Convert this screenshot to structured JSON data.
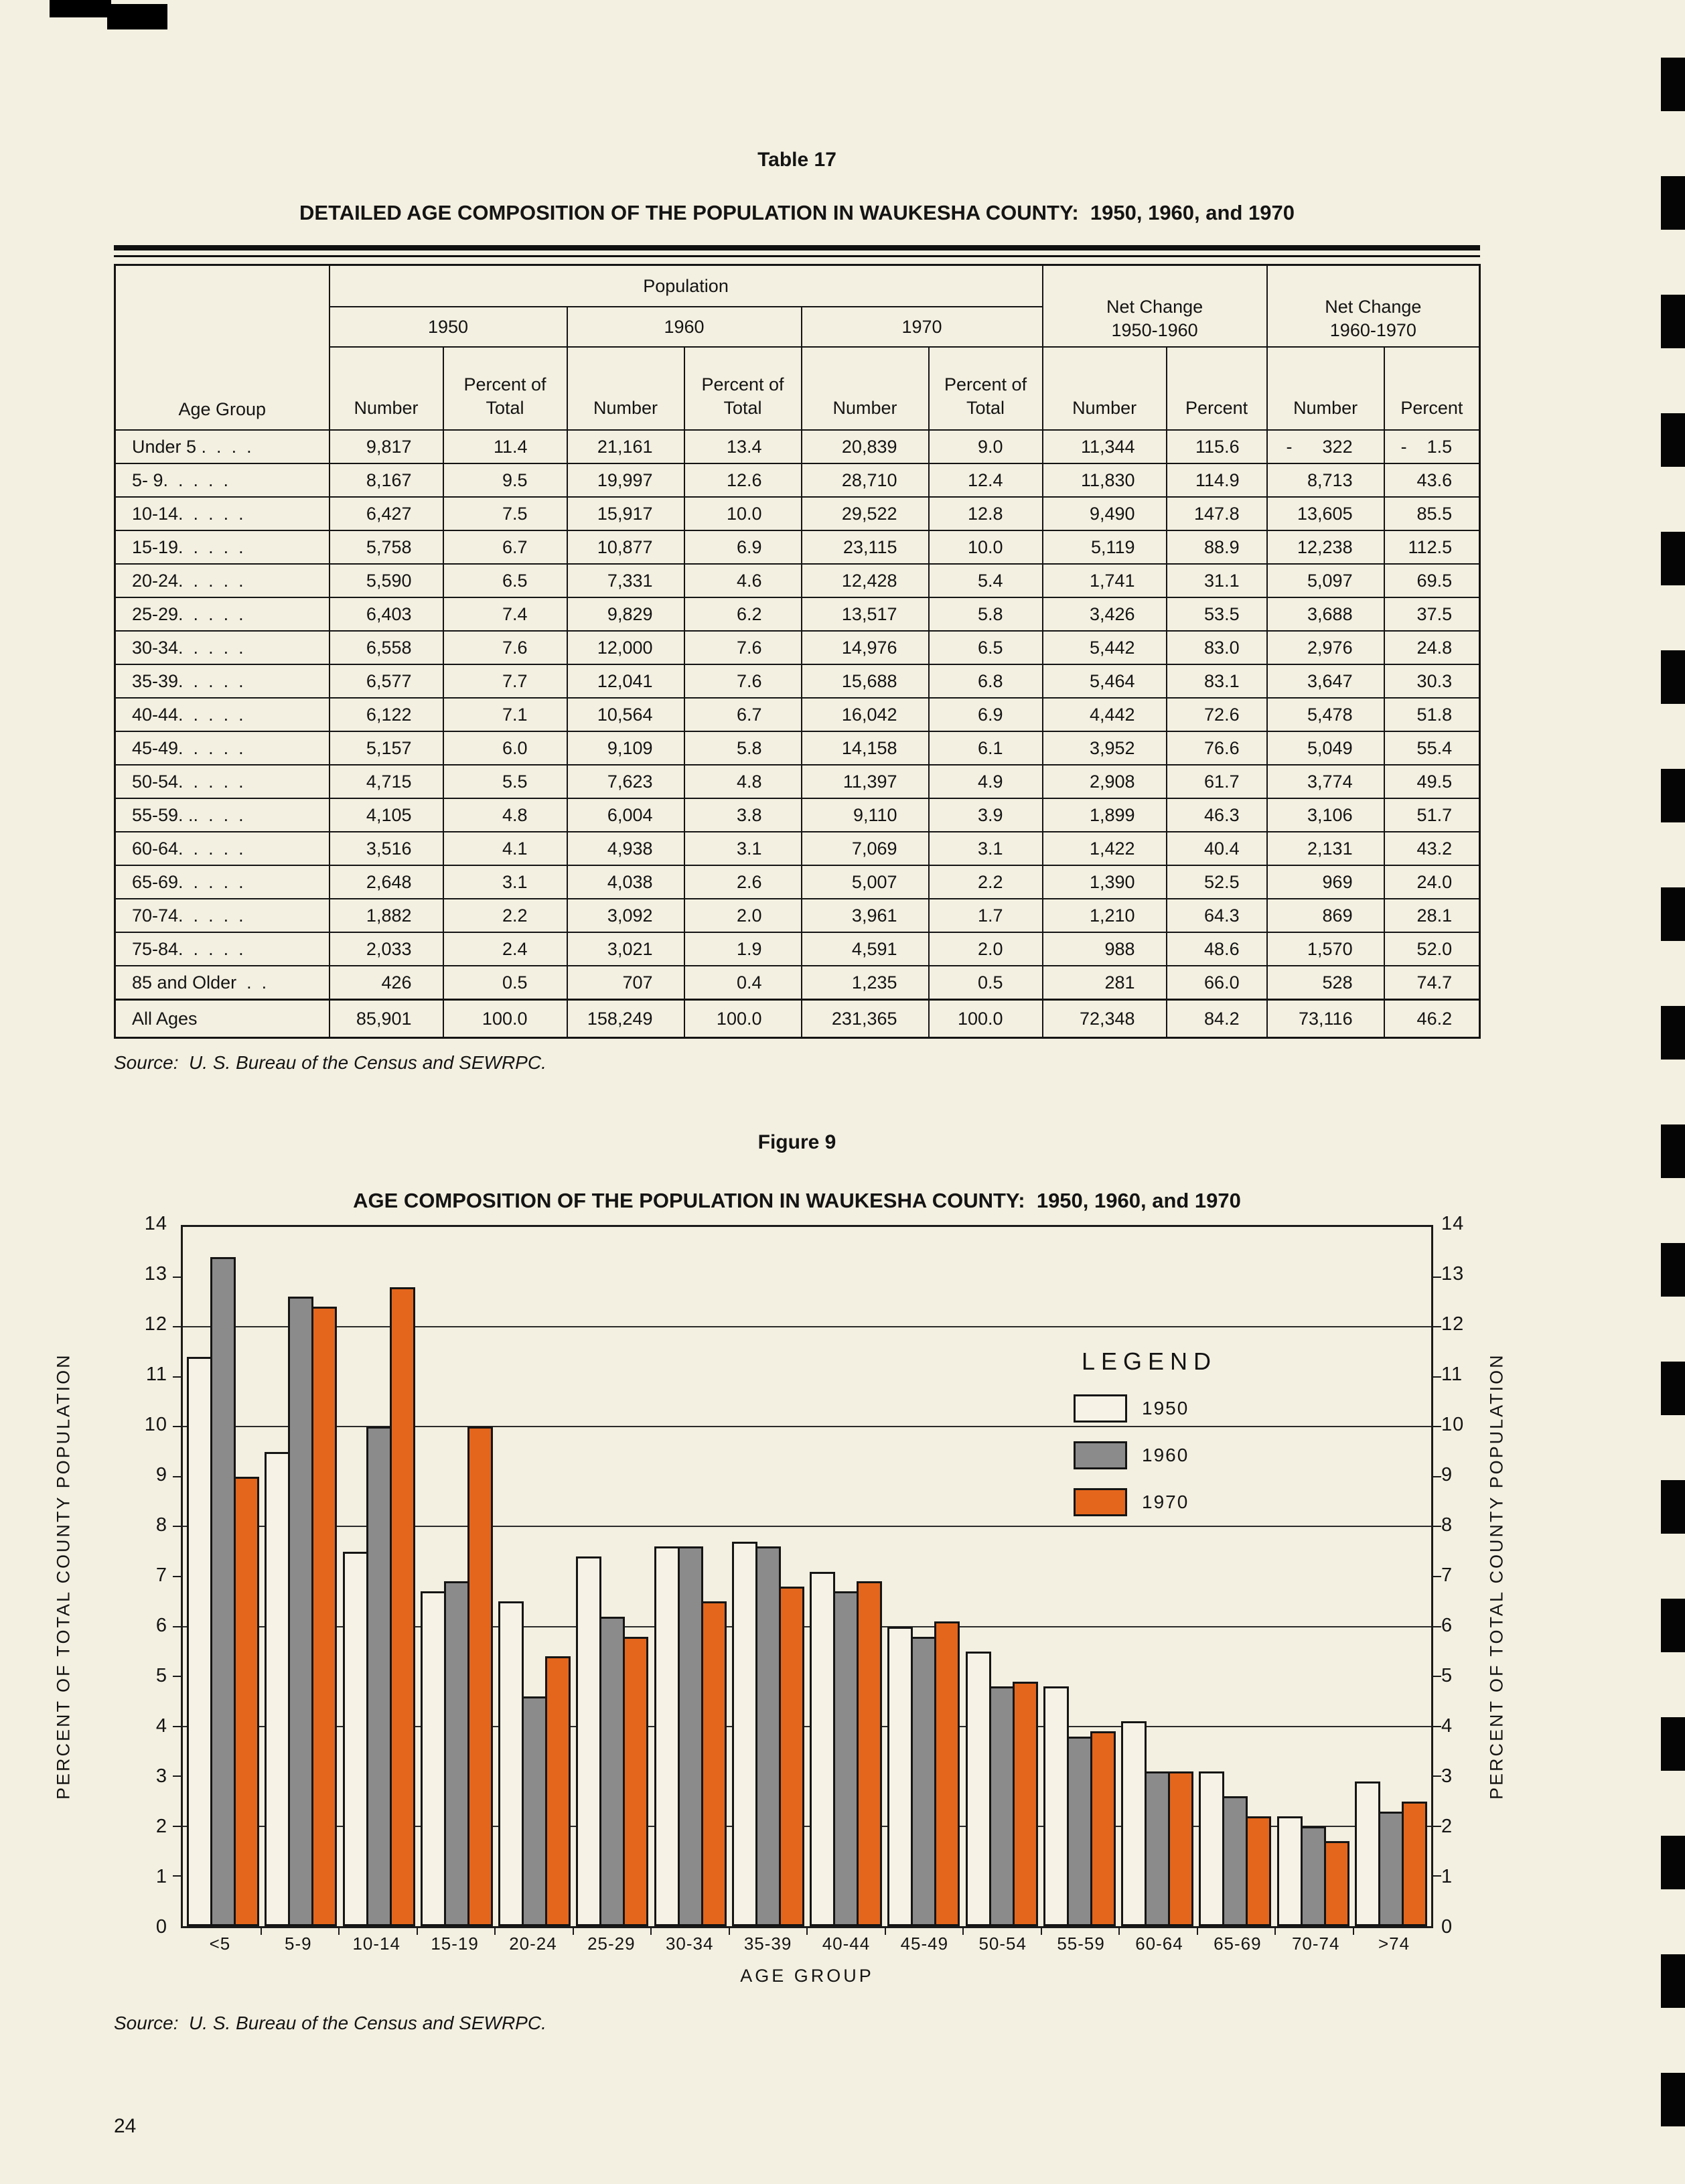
{
  "page": {
    "number": "24"
  },
  "table": {
    "label": "Table 17",
    "title": "DETAILED AGE COMPOSITION OF THE POPULATION IN WAUKESHA COUNTY:  1950, 1960, and 1970",
    "header": {
      "population": "Population",
      "age_group": "Age Group",
      "year_groups": [
        "1950",
        "1960",
        "1970"
      ],
      "number": "Number",
      "percent_of_total": "Percent of Total",
      "percent": "Percent",
      "net_change": [
        {
          "line1": "Net Change",
          "line2": "1950-1960"
        },
        {
          "line1": "Net Change",
          "line2": "1960-1970"
        }
      ]
    },
    "rows": [
      [
        "Under 5 .  .  .  .",
        "9,817",
        "11.4",
        "21,161",
        "13.4",
        "20,839",
        "9.0",
        "11,344",
        "115.6",
        "-      322",
        "-    1.5"
      ],
      [
        "5- 9.  .  .  .  .",
        "8,167",
        "9.5",
        "19,997",
        "12.6",
        "28,710",
        "12.4",
        "11,830",
        "114.9",
        "8,713",
        "43.6"
      ],
      [
        "10-14.  .  .  .  .",
        "6,427",
        "7.5",
        "15,917",
        "10.0",
        "29,522",
        "12.8",
        "9,490",
        "147.8",
        "13,605",
        "85.5"
      ],
      [
        "15-19.  .  .  .  .",
        "5,758",
        "6.7",
        "10,877",
        "6.9",
        "23,115",
        "10.0",
        "5,119",
        "88.9",
        "12,238",
        "112.5"
      ],
      [
        "20-24.  .  .  .  .",
        "5,590",
        "6.5",
        "7,331",
        "4.6",
        "12,428",
        "5.4",
        "1,741",
        "31.1",
        "5,097",
        "69.5"
      ],
      [
        "25-29.  .  .  .  .",
        "6,403",
        "7.4",
        "9,829",
        "6.2",
        "13,517",
        "5.8",
        "3,426",
        "53.5",
        "3,688",
        "37.5"
      ],
      [
        "30-34.  .  .  .  .",
        "6,558",
        "7.6",
        "12,000",
        "7.6",
        "14,976",
        "6.5",
        "5,442",
        "83.0",
        "2,976",
        "24.8"
      ],
      [
        "35-39.  .  .  .  .",
        "6,577",
        "7.7",
        "12,041",
        "7.6",
        "15,688",
        "6.8",
        "5,464",
        "83.1",
        "3,647",
        "30.3"
      ],
      [
        "40-44.  .  .  .  .",
        "6,122",
        "7.1",
        "10,564",
        "6.7",
        "16,042",
        "6.9",
        "4,442",
        "72.6",
        "5,478",
        "51.8"
      ],
      [
        "45-49.  .  .  .  .",
        "5,157",
        "6.0",
        "9,109",
        "5.8",
        "14,158",
        "6.1",
        "3,952",
        "76.6",
        "5,049",
        "55.4"
      ],
      [
        "50-54.  .  .  .  .",
        "4,715",
        "5.5",
        "7,623",
        "4.8",
        "11,397",
        "4.9",
        "2,908",
        "61.7",
        "3,774",
        "49.5"
      ],
      [
        "55-59. ..  .  .  .",
        "4,105",
        "4.8",
        "6,004",
        "3.8",
        "9,110",
        "3.9",
        "1,899",
        "46.3",
        "3,106",
        "51.7"
      ],
      [
        "60-64.  .  .  .  .",
        "3,516",
        "4.1",
        "4,938",
        "3.1",
        "7,069",
        "3.1",
        "1,422",
        "40.4",
        "2,131",
        "43.2"
      ],
      [
        "65-69.  .  .  .  .",
        "2,648",
        "3.1",
        "4,038",
        "2.6",
        "5,007",
        "2.2",
        "1,390",
        "52.5",
        "969",
        "24.0"
      ],
      [
        "70-74.  .  .  .  .",
        "1,882",
        "2.2",
        "3,092",
        "2.0",
        "3,961",
        "1.7",
        "1,210",
        "64.3",
        "869",
        "28.1"
      ],
      [
        "75-84.  .  .  .  .",
        "2,033",
        "2.4",
        "3,021",
        "1.9",
        "4,591",
        "2.0",
        "988",
        "48.6",
        "1,570",
        "52.0"
      ],
      [
        "85 and Older  .  .",
        "426",
        "0.5",
        "707",
        "0.4",
        "1,235",
        "0.5",
        "281",
        "66.0",
        "528",
        "74.7"
      ]
    ],
    "total_row": [
      "All Ages",
      "85,901",
      "100.0",
      "158,249",
      "100.0",
      "231,365",
      "100.0",
      "72,348",
      "84.2",
      "73,116",
      "46.2"
    ],
    "source": "Source:  U. S. Bureau of the Census and SEWRPC."
  },
  "figure": {
    "label": "Figure 9",
    "source": "Source:  U. S. Bureau of the Census and SEWRPC."
  },
  "chart_data": {
    "type": "bar",
    "title": "AGE COMPOSITION OF THE POPULATION IN WAUKESHA COUNTY:  1950, 1960, and 1970",
    "xlabel": "AGE GROUP",
    "ylabel": "PERCENT OF TOTAL COUNTY POPULATION",
    "ylim": [
      0,
      14
    ],
    "yticks": [
      0,
      1,
      2,
      3,
      4,
      5,
      6,
      7,
      8,
      9,
      10,
      11,
      12,
      13,
      14
    ],
    "gridlines_at": [
      2,
      4,
      6,
      8,
      10,
      12
    ],
    "legend_title": "LEGEND",
    "legend_position": "upper right",
    "categories": [
      "<5",
      "5-9",
      "10-14",
      "15-19",
      "20-24",
      "25-29",
      "30-34",
      "35-39",
      "40-44",
      "45-49",
      "50-54",
      "55-59",
      "60-64",
      "65-69",
      "70-74",
      ">74"
    ],
    "series": [
      {
        "name": "1950",
        "color": "#f6f3e6",
        "values": [
          11.4,
          9.5,
          7.5,
          6.7,
          6.5,
          7.4,
          7.6,
          7.7,
          7.1,
          6.0,
          5.5,
          4.8,
          4.1,
          3.1,
          2.2,
          2.9
        ]
      },
      {
        "name": "1960",
        "color": "#8b8b8b",
        "values": [
          13.4,
          12.6,
          10.0,
          6.9,
          4.6,
          6.2,
          7.6,
          7.6,
          6.7,
          5.8,
          4.8,
          3.8,
          3.1,
          2.6,
          2.0,
          2.3
        ]
      },
      {
        "name": "1970",
        "color": "#e4661c",
        "values": [
          9.0,
          12.4,
          12.8,
          10.0,
          5.4,
          5.8,
          6.5,
          6.8,
          6.9,
          6.1,
          4.9,
          3.9,
          3.1,
          2.2,
          1.7,
          2.5
        ]
      }
    ]
  }
}
